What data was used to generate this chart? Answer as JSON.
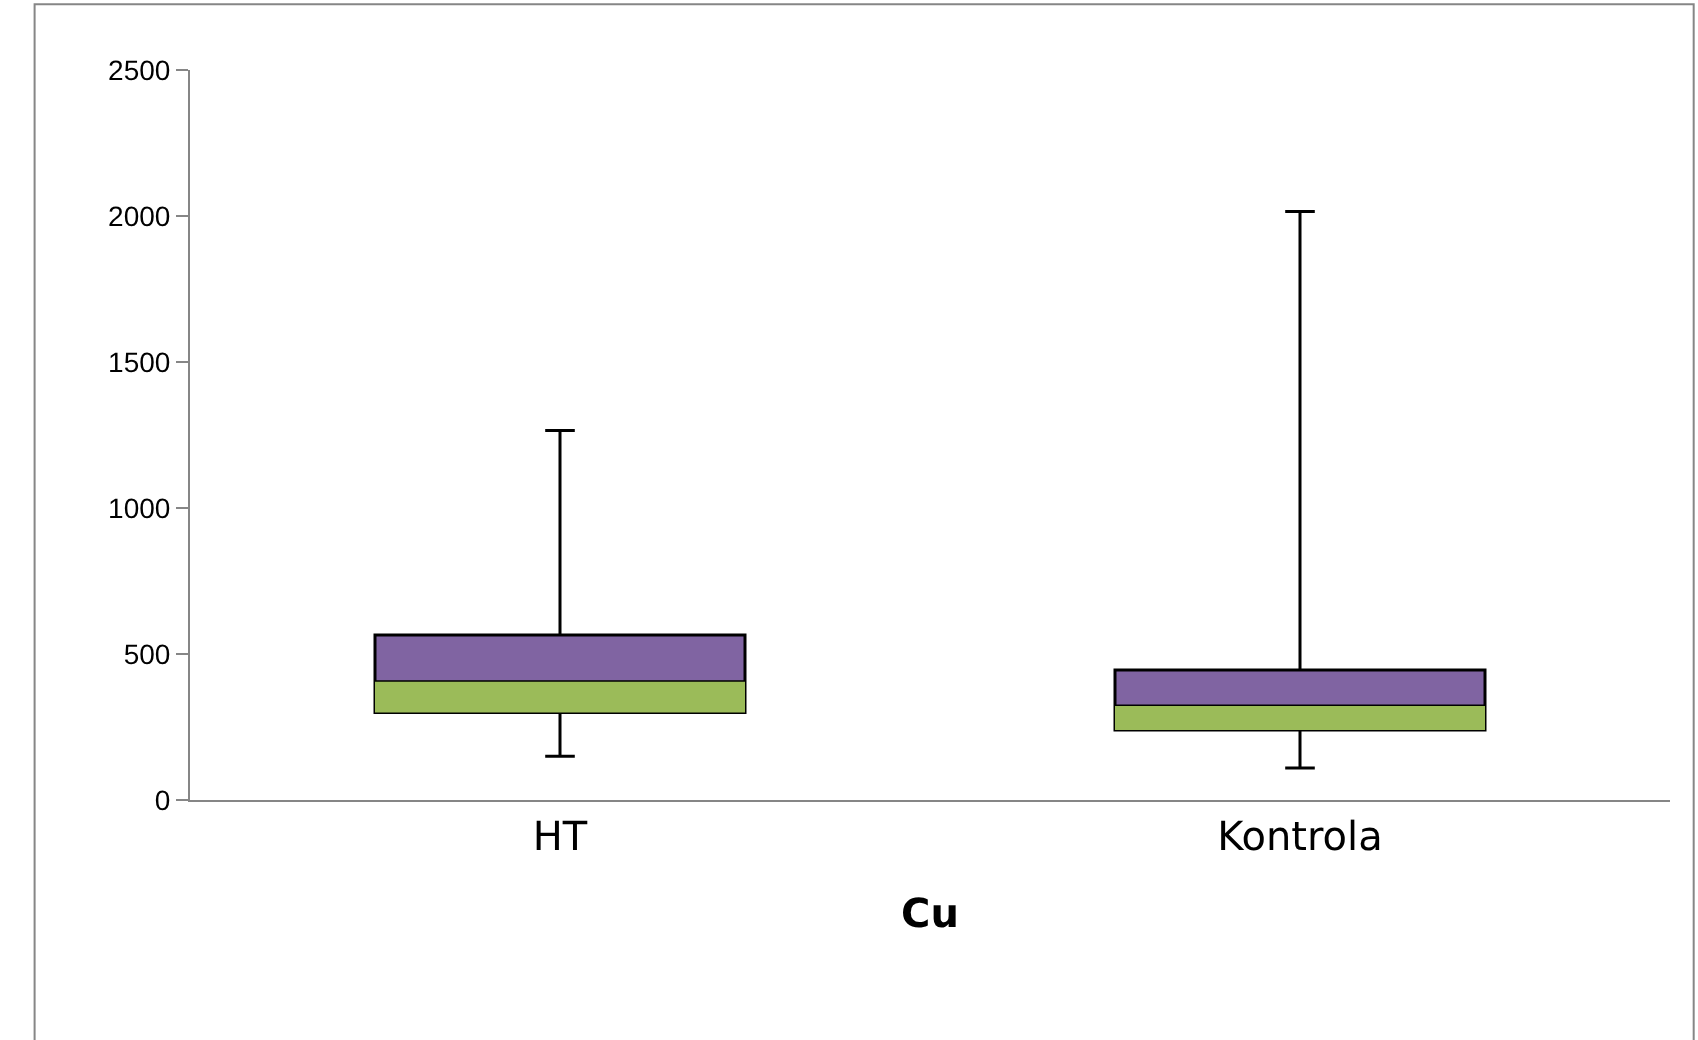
{
  "chart_data": {
    "type": "box",
    "xlabel": "Cu",
    "categories": [
      "HT",
      "Kontrola"
    ],
    "series": [
      {
        "color": "#8064a2",
        "boxes": [
          {
            "low": 150,
            "q1": 300,
            "median": 405,
            "q3": 565,
            "high": 1265
          },
          {
            "low": 110,
            "q1": 240,
            "median": 322,
            "q3": 445,
            "high": 2015
          }
        ]
      }
    ],
    "ylim": [
      0,
      2500
    ],
    "yticks": [
      0,
      500,
      1000,
      1500,
      2000,
      2500
    ]
  }
}
